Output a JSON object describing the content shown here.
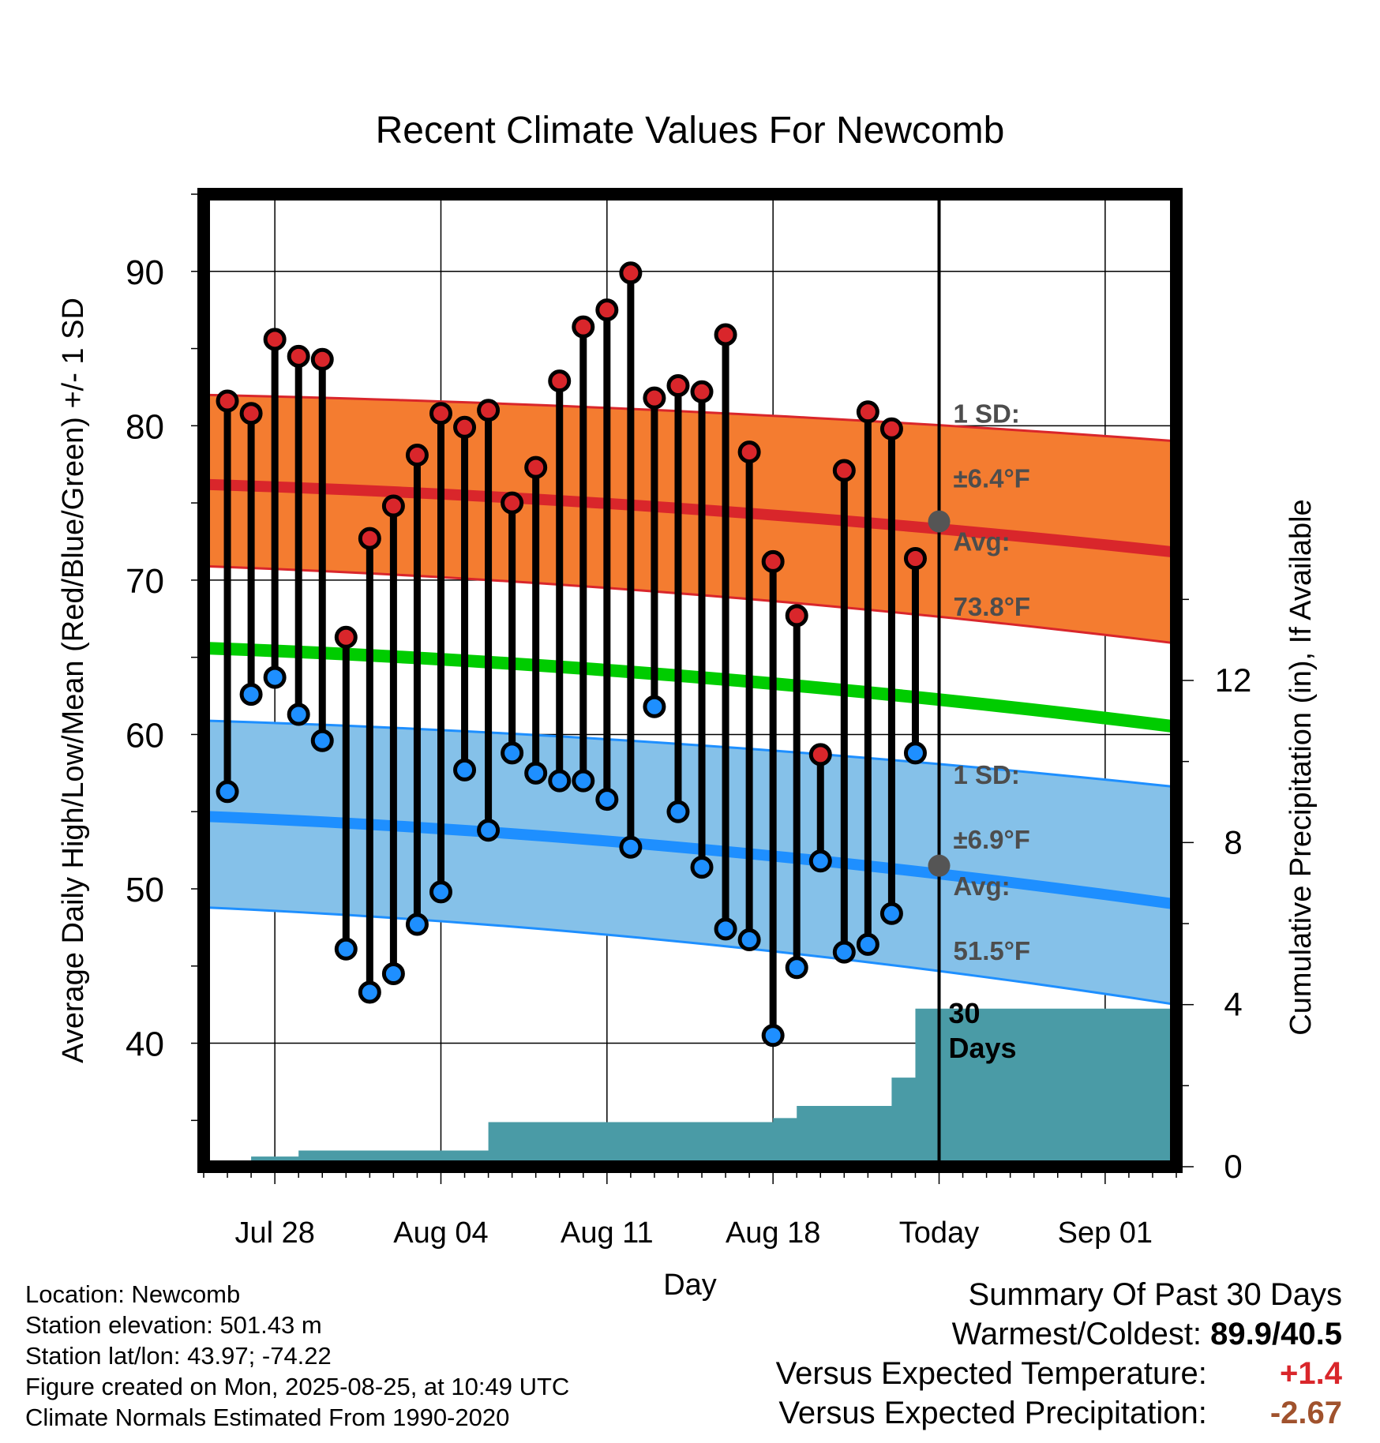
{
  "title": "Recent Climate Values For Newcomb",
  "chart_data": {
    "type": "line",
    "title": "Recent Climate Values For Newcomb",
    "xlabel": "Day",
    "ylabel_left": "Average Daily High/Low/Mean (Red/Blue/Green) +/- 1 SD",
    "ylabel_right": "Cumulative Precipitation (in), If Available",
    "ylim_left": [
      32,
      95
    ],
    "yticks_left": [
      40,
      50,
      60,
      70,
      80,
      90
    ],
    "ylim_right": [
      0,
      24
    ],
    "yticks_right": [
      0,
      4,
      8,
      12
    ],
    "xlim": [
      -3,
      38
    ],
    "x_ticks": [
      {
        "day": 0,
        "label": "Jul 28"
      },
      {
        "day": 7,
        "label": "Aug 04"
      },
      {
        "day": 14,
        "label": "Aug 11"
      },
      {
        "day": 21,
        "label": "Aug 18"
      },
      {
        "day": 28,
        "label": "Today"
      },
      {
        "day": 35,
        "label": "Sep 01"
      }
    ],
    "today_day": 28,
    "daily_observations": {
      "days": [
        -2,
        -1,
        0,
        1,
        2,
        3,
        4,
        5,
        6,
        7,
        8,
        9,
        10,
        11,
        12,
        13,
        14,
        15,
        16,
        17,
        18,
        19,
        20,
        21,
        22,
        23,
        24,
        25,
        26,
        27
      ],
      "highs": [
        81.6,
        80.8,
        85.6,
        84.5,
        84.3,
        66.3,
        72.7,
        74.8,
        78.1,
        80.8,
        79.9,
        81.0,
        75.0,
        77.3,
        82.9,
        86.4,
        87.5,
        89.9,
        81.8,
        82.6,
        82.2,
        85.9,
        78.3,
        71.2,
        67.7,
        58.7,
        77.1,
        80.9,
        79.8,
        71.4
      ],
      "lows": [
        56.3,
        62.6,
        63.7,
        61.3,
        59.6,
        46.1,
        43.3,
        44.5,
        47.7,
        49.8,
        57.7,
        53.8,
        58.8,
        57.5,
        57.0,
        57.0,
        55.8,
        52.7,
        61.8,
        55.0,
        51.4,
        47.4,
        46.7,
        40.5,
        44.9,
        51.8,
        45.9,
        46.4,
        48.4,
        58.8
      ]
    },
    "normal_high": {
      "start_day": -3,
      "end_day": 38,
      "mean": [
        76.2,
        71.8
      ],
      "upper": [
        82.0,
        79.0
      ],
      "lower": [
        70.9,
        65.9
      ],
      "label_sd": "1 SD:",
      "label_sd_value": "±6.4°F",
      "label_avg": "Avg:",
      "label_avg_value": "73.8°F",
      "today_avg": 73.8
    },
    "normal_low": {
      "start_day": -3,
      "end_day": 38,
      "mean": [
        54.7,
        49.0
      ],
      "upper": [
        60.9,
        56.6
      ],
      "lower": [
        48.8,
        42.5
      ],
      "label_sd": "1 SD:",
      "label_sd_value": "±6.9°F",
      "label_avg": "Avg:",
      "label_avg_value": "51.5°F",
      "today_avg": 51.5
    },
    "normal_mean": {
      "start_day": -3,
      "end_day": 38,
      "values": [
        65.6,
        60.5
      ]
    },
    "precipitation": {
      "steps": [
        [
          -3,
          0
        ],
        [
          -1,
          0
        ],
        [
          -1,
          0.25
        ],
        [
          1,
          0.25
        ],
        [
          1,
          0.4
        ],
        [
          9,
          0.4
        ],
        [
          9,
          1.1
        ],
        [
          20,
          1.1
        ],
        [
          21,
          1.1
        ],
        [
          21,
          1.2
        ],
        [
          22,
          1.2
        ],
        [
          22,
          1.5
        ],
        [
          25,
          1.5
        ],
        [
          25,
          1.5
        ],
        [
          26,
          1.5
        ],
        [
          26,
          2.2
        ],
        [
          27,
          2.2
        ],
        [
          27,
          3.9
        ],
        [
          38,
          3.9
        ]
      ],
      "label": [
        "30",
        "Days"
      ]
    },
    "colors": {
      "high_band": "#f47c30",
      "high_line": "#d9262b",
      "low_band": "#85c1e9",
      "low_line": "#1e8fff",
      "mean_line": "#00cc00",
      "precip": "#4a9ba6",
      "high_dot": "#d9262b",
      "low_dot": "#1e8fff"
    }
  },
  "footer": {
    "location": "Location: Newcomb",
    "elevation": "Station elevation: 501.43 m",
    "latlon": "Station lat/lon: 43.97; -74.22",
    "created": "Figure created on Mon, 2025-08-25, at 10:49 UTC",
    "normals": "Climate Normals Estimated From 1990-2020"
  },
  "summary": {
    "heading": "Summary Of Past 30 Days",
    "warmest_label": "Warmest/Coldest:",
    "warmest_value": "89.9/40.5",
    "temp_label": "Versus Expected Temperature:",
    "temp_value": "+1.4",
    "precip_label": "Versus Expected Precipitation:",
    "precip_value": "-2.67"
  }
}
